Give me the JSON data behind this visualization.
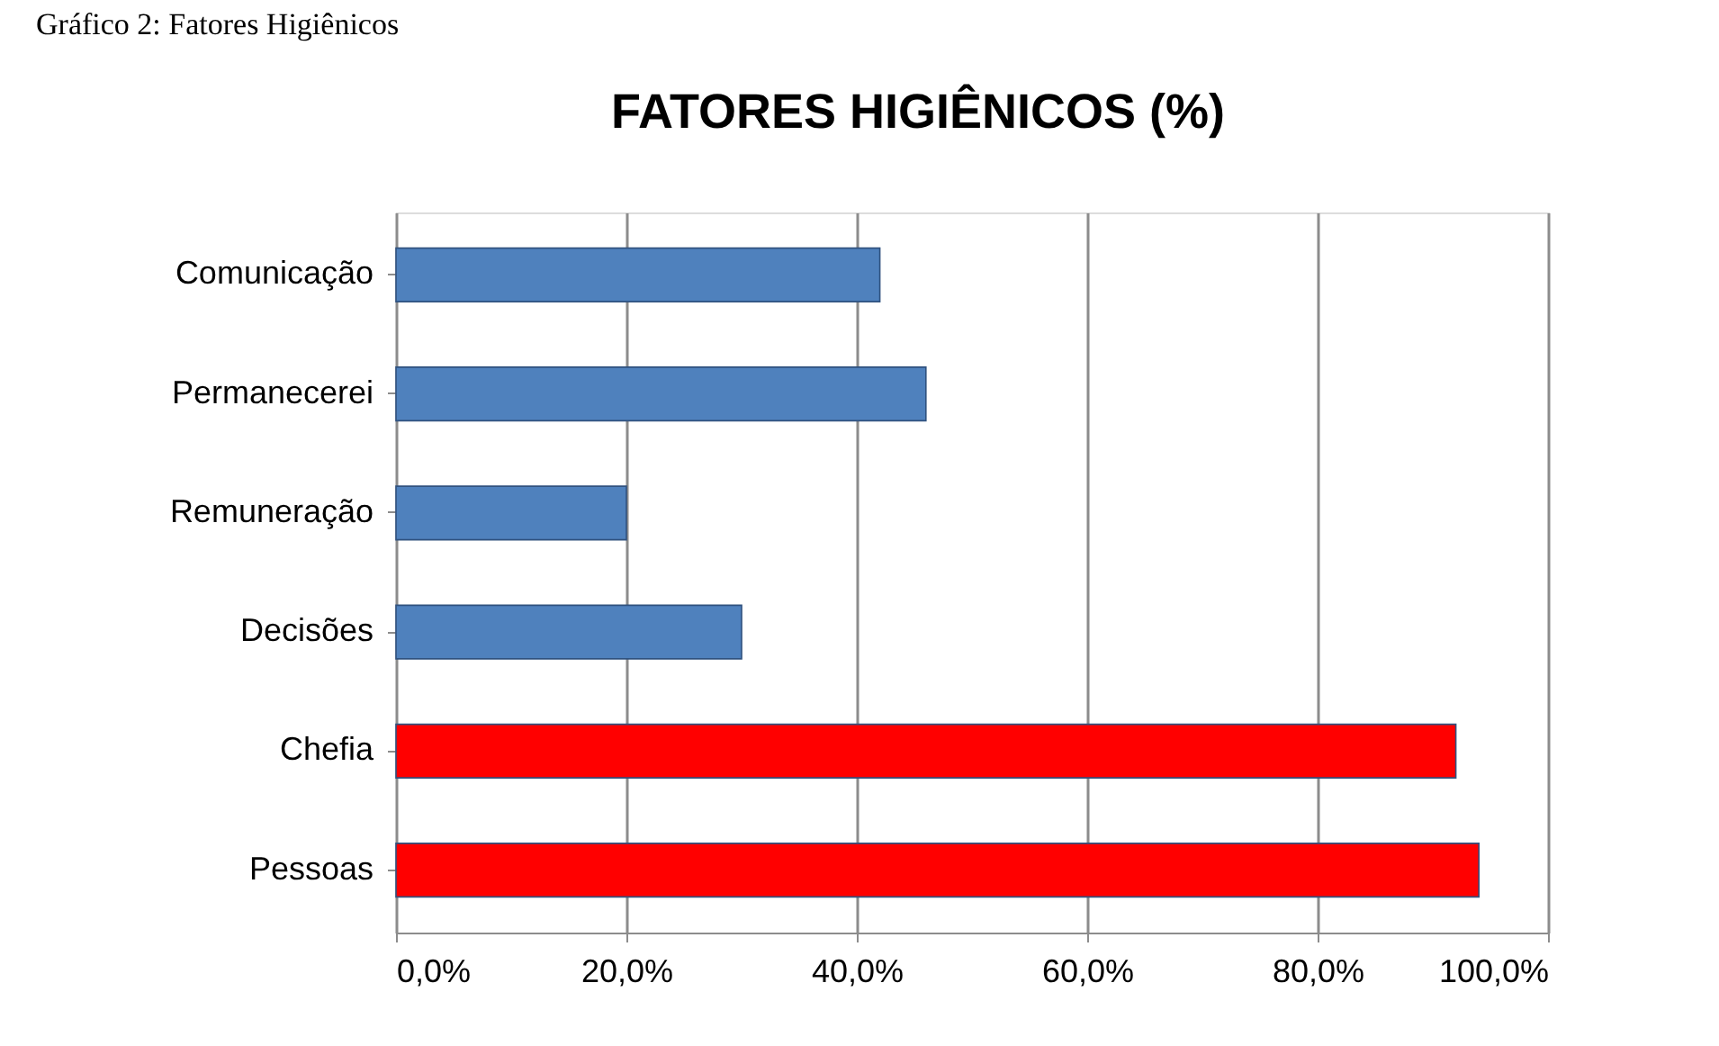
{
  "chart_data": {
    "type": "bar",
    "orientation": "horizontal",
    "title": "FATORES HIGIÊNICOS (%)",
    "annotations": [
      "Gráfico 2:  Fatores Higiênicos"
    ],
    "categories": [
      "Comunicação",
      "Permanecerei",
      "Remuneração",
      "Decisões",
      "Chefia",
      "Pessoas"
    ],
    "values": [
      42,
      46,
      20,
      30,
      92,
      94
    ],
    "colors": [
      "#4f81bd",
      "#4f81bd",
      "#4f81bd",
      "#4f81bd",
      "#ff0000",
      "#ff0000"
    ],
    "xlim": [
      0,
      100
    ],
    "xticks": [
      {
        "value": 0,
        "label": "0,0%"
      },
      {
        "value": 20,
        "label": "20,0%"
      },
      {
        "value": 40,
        "label": "40,0%"
      },
      {
        "value": 60,
        "label": "60,0%"
      },
      {
        "value": 80,
        "label": "80,0%"
      },
      {
        "value": 100,
        "label": "100,0%"
      }
    ],
    "grid": "x"
  }
}
